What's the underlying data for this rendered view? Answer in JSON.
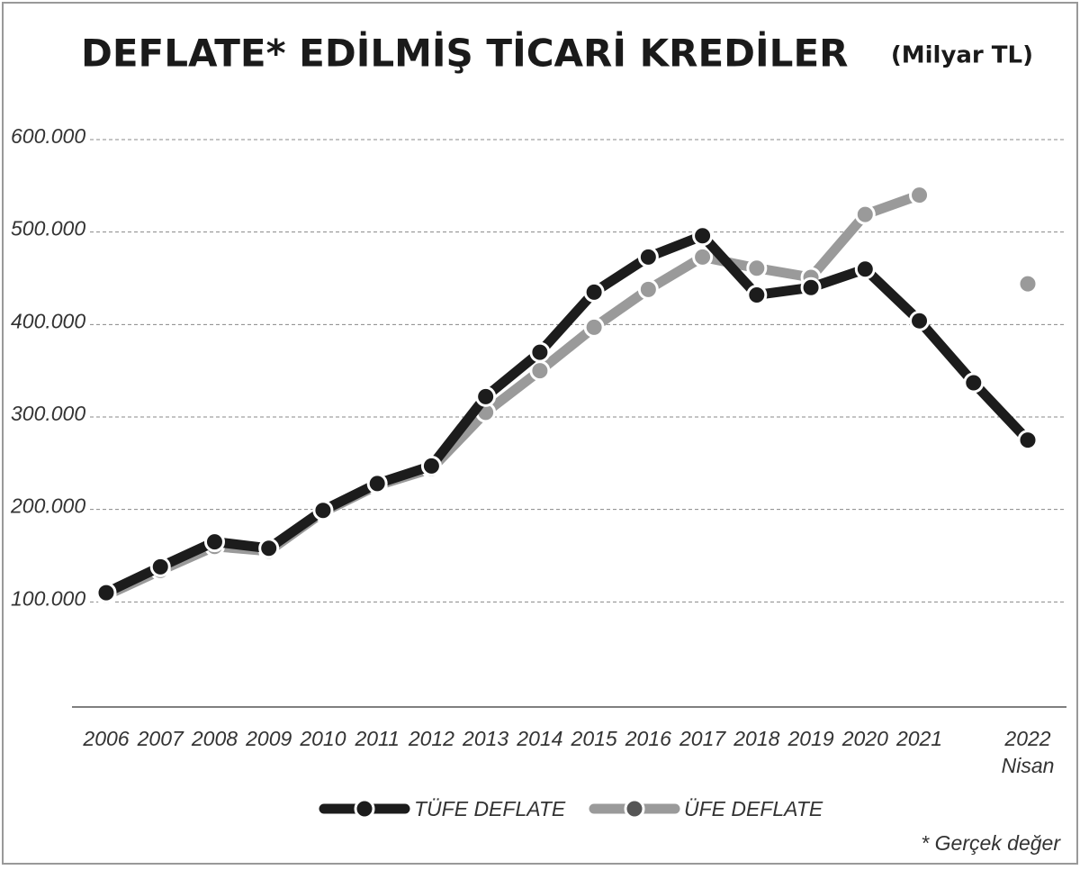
{
  "chart_data": {
    "type": "line",
    "title": "DEFLATE* EDİLMİŞ TİCARİ KREDİLER",
    "subtitle": "(Milyar TL)",
    "categories": [
      "2006",
      "2007",
      "2008",
      "2009",
      "2010",
      "2011",
      "2012",
      "2013",
      "2014",
      "2015",
      "2016",
      "2017",
      "2018",
      "2019",
      "2020",
      "2021",
      null,
      "2022 Nisan"
    ],
    "series": [
      {
        "name": "TÜFE DEFLATE",
        "color": "#1c1c1c",
        "values": [
          110000,
          138000,
          165000,
          158000,
          199000,
          228000,
          247000,
          322000,
          370000,
          435000,
          473000,
          496000,
          432000,
          440000,
          460000,
          404000,
          337000,
          275000
        ]
      },
      {
        "name": "ÜFE DEFLATE",
        "color": "#9a9a9a",
        "values": [
          107000,
          134000,
          160000,
          155000,
          197000,
          226000,
          244000,
          305000,
          350000,
          397000,
          438000,
          473000,
          461000,
          451000,
          519000,
          540000,
          null,
          444000
        ]
      }
    ],
    "ylim": [
      0,
      600000
    ],
    "yticks": [
      {
        "value": 100000,
        "label": "100.000"
      },
      {
        "value": 200000,
        "label": "200.000"
      },
      {
        "value": 300000,
        "label": "300.000"
      },
      {
        "value": 400000,
        "label": "400.000"
      },
      {
        "value": 500000,
        "label": "500.000"
      },
      {
        "value": 600000,
        "label": "600.000"
      }
    ],
    "grid": true,
    "legend": "bottom",
    "note": "* Gerçek değer"
  }
}
